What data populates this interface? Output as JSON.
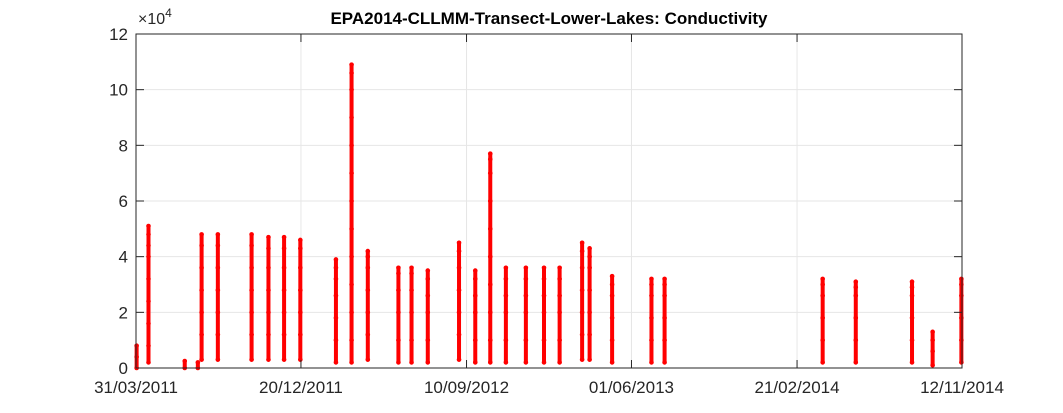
{
  "chart_data": {
    "type": "scatter",
    "title": "EPA2014-CLLMM-Transect-Lower-Lakes: Conductivity",
    "xlabel": "",
    "ylabel": "",
    "y_exponent_label": "×10",
    "y_exponent_power": "4",
    "y_scale_factor": 10000,
    "ylim": [
      0,
      12
    ],
    "yticks": [
      0,
      2,
      4,
      6,
      8,
      10,
      12
    ],
    "xlim": [
      "2011-03-31",
      "2014-11-12"
    ],
    "xticks": [
      "2011-03-31",
      "2011-12-20",
      "2012-09-10",
      "2013-06-01",
      "2014-02-21",
      "2014-11-12"
    ],
    "xtick_labels": [
      "31/03/2011",
      "20/12/2011",
      "10/09/2012",
      "01/06/2013",
      "21/02/2014",
      "12/11/2014"
    ],
    "grid": true,
    "marker_color": "#ff0000",
    "units_note": "y values shown in units of 10^4",
    "series": [
      {
        "points": [
          {
            "date": "2011-04-01",
            "y": [
              0,
              0.4,
              0.8
            ]
          },
          {
            "date": "2011-04-20",
            "y": [
              0.2,
              0.8,
              1.6,
              2.4,
              3.2,
              4.0,
              4.4,
              4.8,
              5.1
            ]
          },
          {
            "date": "2011-06-17",
            "y": [
              0,
              0.25
            ]
          },
          {
            "date": "2011-07-08",
            "y": [
              0.0,
              0.2
            ]
          },
          {
            "date": "2011-07-14",
            "y": [
              0.3,
              1.2,
              2.0,
              2.8,
              3.6,
              4.4,
              4.8
            ]
          },
          {
            "date": "2011-08-09",
            "y": [
              0.3,
              1.2,
              2.0,
              2.8,
              3.6,
              4.4,
              4.8
            ]
          },
          {
            "date": "2011-10-02",
            "y": [
              0.3,
              1.2,
              2.0,
              2.8,
              3.6,
              4.4,
              4.8
            ]
          },
          {
            "date": "2011-10-29",
            "y": [
              0.3,
              1.2,
              2.0,
              2.8,
              3.6,
              4.3,
              4.7
            ]
          },
          {
            "date": "2011-11-23",
            "y": [
              0.3,
              1.2,
              2.0,
              2.8,
              3.6,
              4.3,
              4.7
            ]
          },
          {
            "date": "2011-12-19",
            "y": [
              0.3,
              1.2,
              2.0,
              2.8,
              3.6,
              4.3,
              4.6
            ]
          },
          {
            "date": "2012-02-14",
            "y": [
              0.2,
              1.0,
              1.8,
              2.6,
              3.2,
              3.6,
              3.9
            ]
          },
          {
            "date": "2012-03-10",
            "y": [
              0.2,
              1.0,
              2.0,
              3.0,
              4.0,
              5.0,
              6.0,
              7.0,
              8.0,
              9.0,
              10.0,
              10.6,
              10.9
            ]
          },
          {
            "date": "2012-04-05",
            "y": [
              0.3,
              1.2,
              2.0,
              2.8,
              3.6,
              4.0,
              4.2
            ]
          },
          {
            "date": "2012-05-24",
            "y": [
              0.2,
              1.0,
              2.0,
              2.8,
              3.4,
              3.6
            ]
          },
          {
            "date": "2012-06-14",
            "y": [
              0.2,
              1.0,
              2.0,
              2.8,
              3.4,
              3.6
            ]
          },
          {
            "date": "2012-07-10",
            "y": [
              0.2,
              1.0,
              2.0,
              2.6,
              3.2,
              3.5
            ]
          },
          {
            "date": "2012-08-29",
            "y": [
              0.3,
              1.2,
              2.0,
              2.8,
              3.6,
              4.2,
              4.5
            ]
          },
          {
            "date": "2012-09-24",
            "y": [
              0.2,
              1.0,
              2.0,
              2.6,
              3.2,
              3.5
            ]
          },
          {
            "date": "2012-10-18",
            "y": [
              0.2,
              1.0,
              2.0,
              3.0,
              4.0,
              5.0,
              6.0,
              7.0,
              7.5,
              7.7
            ]
          },
          {
            "date": "2012-11-12",
            "y": [
              0.2,
              1.0,
              2.0,
              2.6,
              3.2,
              3.6
            ]
          },
          {
            "date": "2012-12-14",
            "y": [
              0.2,
              1.0,
              2.0,
              2.6,
              3.2,
              3.6
            ]
          },
          {
            "date": "2013-01-12",
            "y": [
              0.2,
              1.0,
              2.0,
              2.6,
              3.2,
              3.6
            ]
          },
          {
            "date": "2013-02-06",
            "y": [
              0.2,
              1.0,
              2.0,
              2.6,
              3.2,
              3.6
            ]
          },
          {
            "date": "2013-03-14",
            "y": [
              0.3,
              1.2,
              2.0,
              2.8,
              3.6,
              4.2,
              4.5
            ]
          },
          {
            "date": "2013-03-26",
            "y": [
              0.3,
              1.2,
              2.0,
              2.8,
              3.6,
              4.0,
              4.3
            ]
          },
          {
            "date": "2013-05-01",
            "y": [
              0.2,
              1.0,
              1.8,
              2.6,
              3.0,
              3.3
            ]
          },
          {
            "date": "2013-07-03",
            "y": [
              0.2,
              1.0,
              1.8,
              2.6,
              3.0,
              3.2
            ]
          },
          {
            "date": "2013-07-24",
            "y": [
              0.2,
              1.0,
              1.8,
              2.6,
              3.0,
              3.2
            ]
          },
          {
            "date": "2014-04-03",
            "y": [
              0.2,
              1.0,
              1.8,
              2.6,
              3.0,
              3.2
            ]
          },
          {
            "date": "2014-05-26",
            "y": [
              0.2,
              1.0,
              1.8,
              2.6,
              2.9,
              3.1
            ]
          },
          {
            "date": "2014-08-24",
            "y": [
              0.2,
              1.0,
              1.8,
              2.6,
              2.9,
              3.1
            ]
          },
          {
            "date": "2014-09-26",
            "y": [
              0.1,
              0.6,
              1.0,
              1.3
            ]
          },
          {
            "date": "2014-11-11",
            "y": [
              0.2,
              1.0,
              1.8,
              2.6,
              3.0,
              3.2
            ]
          }
        ]
      }
    ]
  }
}
